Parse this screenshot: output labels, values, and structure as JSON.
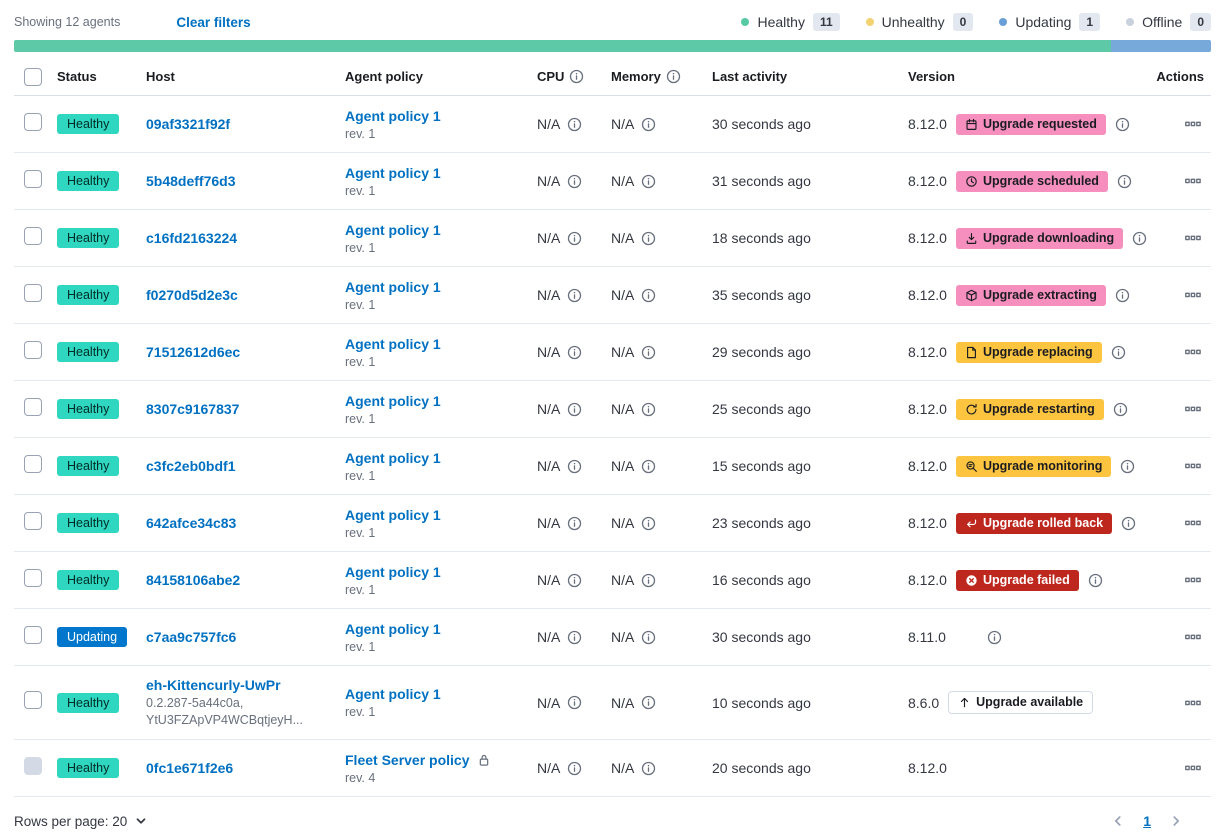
{
  "header": {
    "showing": "Showing 12 agents",
    "clear_filters": "Clear filters",
    "legend": [
      {
        "label": "Healthy",
        "count": "11",
        "color": "#57C9A5"
      },
      {
        "label": "Unhealthy",
        "count": "0",
        "color": "#F3D371"
      },
      {
        "label": "Updating",
        "count": "1",
        "color": "#699FD6"
      },
      {
        "label": "Offline",
        "count": "0",
        "color": "#C9D1DC"
      }
    ],
    "progress_segments": [
      {
        "color": "#5EC9A6",
        "fraction": 0.9167
      },
      {
        "color": "#78A9DB",
        "fraction": 0.0833
      }
    ]
  },
  "table": {
    "headers": {
      "status": "Status",
      "host": "Host",
      "policy": "Agent policy",
      "cpu": "CPU",
      "memory": "Memory",
      "last_activity": "Last activity",
      "version": "Version",
      "actions": "Actions"
    },
    "rows": [
      {
        "status": "Healthy",
        "status_type": "healthy",
        "host": "09af3321f92f",
        "policy": "Agent policy 1",
        "revision": "rev. 1",
        "cpu": "N/A",
        "memory": "N/A",
        "last_activity": "30 seconds ago",
        "version": "8.12.0",
        "upgrade": {
          "label": "Upgrade requested",
          "style": "pink",
          "icon": "calendar"
        },
        "version_info": true
      },
      {
        "status": "Healthy",
        "status_type": "healthy",
        "host": "5b48deff76d3",
        "policy": "Agent policy 1",
        "revision": "rev. 1",
        "cpu": "N/A",
        "memory": "N/A",
        "last_activity": "31 seconds ago",
        "version": "8.12.0",
        "upgrade": {
          "label": "Upgrade scheduled",
          "style": "pink",
          "icon": "clock"
        },
        "version_info": true
      },
      {
        "status": "Healthy",
        "status_type": "healthy",
        "host": "c16fd2163224",
        "policy": "Agent policy 1",
        "revision": "rev. 1",
        "cpu": "N/A",
        "memory": "N/A",
        "last_activity": "18 seconds ago",
        "version": "8.12.0",
        "upgrade": {
          "label": "Upgrade downloading",
          "style": "pink",
          "icon": "download"
        },
        "version_info": true
      },
      {
        "status": "Healthy",
        "status_type": "healthy",
        "host": "f0270d5d2e3c",
        "policy": "Agent policy 1",
        "revision": "rev. 1",
        "cpu": "N/A",
        "memory": "N/A",
        "last_activity": "35 seconds ago",
        "version": "8.12.0",
        "upgrade": {
          "label": "Upgrade extracting",
          "style": "pink",
          "icon": "package"
        },
        "version_info": true
      },
      {
        "status": "Healthy",
        "status_type": "healthy",
        "host": "71512612d6ec",
        "policy": "Agent policy 1",
        "revision": "rev. 1",
        "cpu": "N/A",
        "memory": "N/A",
        "last_activity": "29 seconds ago",
        "version": "8.12.0",
        "upgrade": {
          "label": "Upgrade replacing",
          "style": "yellow",
          "icon": "document"
        },
        "version_info": true
      },
      {
        "status": "Healthy",
        "status_type": "healthy",
        "host": "8307c9167837",
        "policy": "Agent policy 1",
        "revision": "rev. 1",
        "cpu": "N/A",
        "memory": "N/A",
        "last_activity": "25 seconds ago",
        "version": "8.12.0",
        "upgrade": {
          "label": "Upgrade restarting",
          "style": "yellow",
          "icon": "refresh"
        },
        "version_info": true
      },
      {
        "status": "Healthy",
        "status_type": "healthy",
        "host": "c3fc2eb0bdf1",
        "policy": "Agent policy 1",
        "revision": "rev. 1",
        "cpu": "N/A",
        "memory": "N/A",
        "last_activity": "15 seconds ago",
        "version": "8.12.0",
        "upgrade": {
          "label": "Upgrade monitoring",
          "style": "yellow",
          "icon": "inspect"
        },
        "version_info": true
      },
      {
        "status": "Healthy",
        "status_type": "healthy",
        "host": "642afce34c83",
        "policy": "Agent policy 1",
        "revision": "rev. 1",
        "cpu": "N/A",
        "memory": "N/A",
        "last_activity": "23 seconds ago",
        "version": "8.12.0",
        "upgrade": {
          "label": "Upgrade rolled back",
          "style": "red",
          "icon": "return"
        },
        "version_info": true
      },
      {
        "status": "Healthy",
        "status_type": "healthy",
        "host": "84158106abe2",
        "policy": "Agent policy 1",
        "revision": "rev. 1",
        "cpu": "N/A",
        "memory": "N/A",
        "last_activity": "16 seconds ago",
        "version": "8.12.0",
        "upgrade": {
          "label": "Upgrade failed",
          "style": "red",
          "icon": "cross-circle"
        },
        "version_info": true
      },
      {
        "status": "Updating",
        "status_type": "updating",
        "host": "c7aa9c757fc6",
        "policy": "Agent policy 1",
        "revision": "rev. 1",
        "cpu": "N/A",
        "memory": "N/A",
        "last_activity": "30 seconds ago",
        "version": "8.11.0",
        "upgrade": null,
        "version_info": true
      },
      {
        "status": "Healthy",
        "status_type": "healthy",
        "host": "eh-Kittencurly-UwPr",
        "host_sub": [
          "0.2.287-5a44c0a,",
          "YtU3FZApVP4WCBqtjeyH..."
        ],
        "policy": "Agent policy 1",
        "revision": "rev. 1",
        "cpu": "N/A",
        "memory": "N/A",
        "last_activity": "10 seconds ago",
        "version": "8.6.0",
        "upgrade": {
          "label": "Upgrade available",
          "style": "outline",
          "icon": "arrow-up"
        },
        "version_info": false
      },
      {
        "status": "Healthy",
        "status_type": "healthy",
        "host": "0fc1e671f2e6",
        "policy": "Fleet Server policy",
        "policy_locked": true,
        "revision": "rev. 4",
        "cpu": "N/A",
        "memory": "N/A",
        "last_activity": "20 seconds ago",
        "version": "8.12.0",
        "upgrade": null,
        "version_info": false,
        "checkbox_disabled": true
      }
    ]
  },
  "footer": {
    "rows_per_page": "Rows per page: 20",
    "page": "1"
  },
  "colors": {
    "healthy_badge": "#2FD6C0",
    "updating_badge": "#0077CC",
    "pink_badge": "#F68FBE",
    "yellow_badge": "#FDC440",
    "red_badge": "#BD271E",
    "link_blue": "#0071C2"
  }
}
